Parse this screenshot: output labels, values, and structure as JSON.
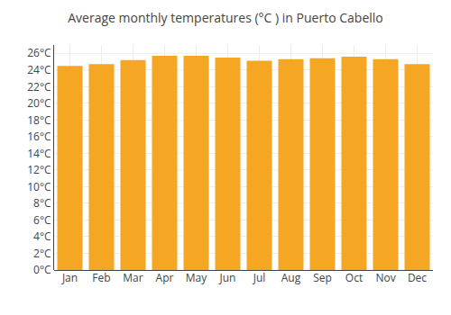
{
  "chart_data": {
    "type": "bar",
    "title": "Average monthly temperatures (°C ) in Puerto Cabello",
    "categories": [
      "Jan",
      "Feb",
      "Mar",
      "Apr",
      "May",
      "Jun",
      "Jul",
      "Aug",
      "Sep",
      "Oct",
      "Nov",
      "Dec"
    ],
    "values": [
      24.5,
      24.7,
      25.2,
      25.7,
      25.7,
      25.5,
      25.1,
      25.3,
      25.4,
      25.6,
      25.3,
      24.7
    ],
    "color": "#F5A623",
    "ylim": [
      0,
      27
    ],
    "yticks": [
      {
        "value": 0,
        "label": "0°C"
      },
      {
        "value": 2,
        "label": "2°C"
      },
      {
        "value": 4,
        "label": "4°C"
      },
      {
        "value": 6,
        "label": "6°C"
      },
      {
        "value": 8,
        "label": "8°C"
      },
      {
        "value": 10,
        "label": "10°C"
      },
      {
        "value": 12,
        "label": "12°C"
      },
      {
        "value": 14,
        "label": "14°C"
      },
      {
        "value": 16,
        "label": "16°C"
      },
      {
        "value": 18,
        "label": "18°C"
      },
      {
        "value": 20,
        "label": "20°C"
      },
      {
        "value": 22,
        "label": "22°C"
      },
      {
        "value": 24,
        "label": "24°C"
      },
      {
        "value": 26,
        "label": "26°C"
      }
    ],
    "grid": true
  }
}
